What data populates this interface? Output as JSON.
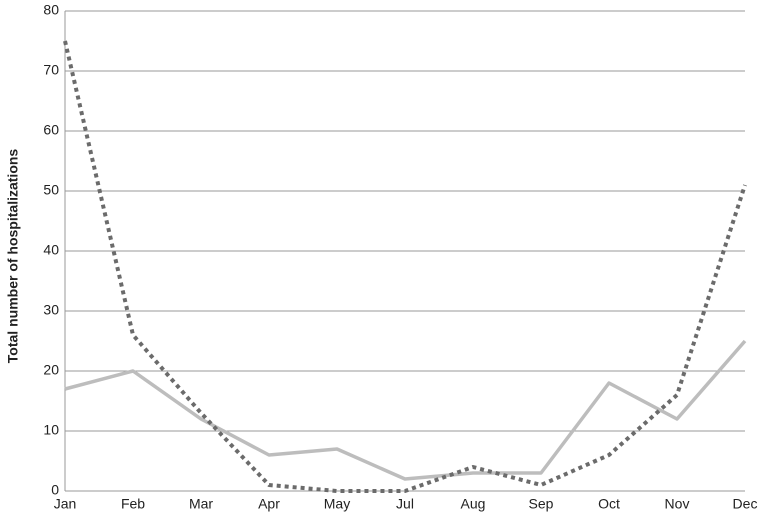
{
  "chart_data": {
    "type": "line",
    "y_label": "Total number of hospitalizations",
    "categories": [
      "Jan",
      "Feb",
      "Mar",
      "Apr",
      "May",
      "Jul",
      "Aug",
      "Sep",
      "Oct",
      "Nov",
      "Dec"
    ],
    "series": [
      {
        "color": "#bdbdbd",
        "dash": "solid",
        "values": [
          17,
          20,
          12,
          6,
          7,
          2,
          3,
          3,
          18,
          12,
          25
        ]
      },
      {
        "color": "#6b6b6b",
        "dash": "dotted",
        "values": [
          75,
          26,
          13,
          1,
          0,
          0,
          4,
          1,
          6,
          16,
          51
        ]
      }
    ],
    "ylim": [
      0,
      80
    ],
    "yticks": [
      0,
      10,
      20,
      30,
      40,
      50,
      60,
      70,
      80
    ],
    "grid": true
  }
}
